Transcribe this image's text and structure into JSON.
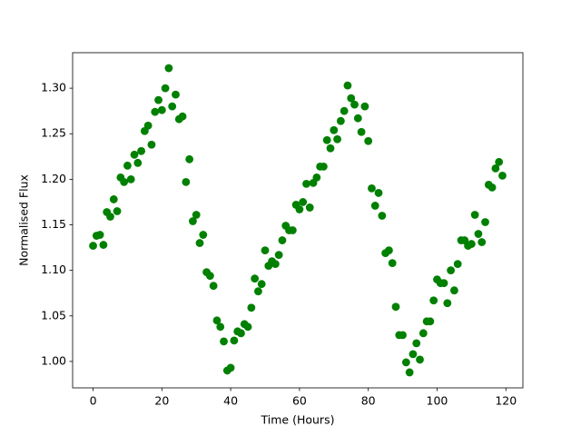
{
  "chart_data": {
    "type": "scatter",
    "xlabel": "Time (Hours)",
    "ylabel": "Normalised Flux",
    "x": [
      0,
      1,
      2,
      3,
      4,
      5,
      6,
      7,
      8,
      9,
      10,
      11,
      12,
      13,
      14,
      15,
      16,
      17,
      18,
      19,
      20,
      21,
      22,
      23,
      24,
      25,
      26,
      27,
      28,
      29,
      30,
      31,
      32,
      33,
      34,
      35,
      36,
      37,
      38,
      39,
      40,
      41,
      42,
      43,
      44,
      45,
      46,
      47,
      48,
      49,
      50,
      51,
      52,
      53,
      54,
      55,
      56,
      57,
      58,
      59,
      60,
      61,
      62,
      63,
      64,
      65,
      66,
      67,
      68,
      69,
      70,
      71,
      72,
      73,
      74,
      75,
      76,
      77,
      78,
      79,
      80,
      81,
      82,
      83,
      84,
      85,
      86,
      87,
      88,
      89,
      90,
      91,
      92,
      93,
      94,
      95,
      96,
      97,
      98,
      99,
      100,
      101,
      102,
      103,
      104,
      105,
      106,
      107,
      108,
      109,
      110,
      111,
      112,
      113,
      114,
      115,
      116,
      117,
      118,
      119
    ],
    "values": [
      1.127,
      1.138,
      1.139,
      1.128,
      1.164,
      1.159,
      1.178,
      1.165,
      1.202,
      1.197,
      1.215,
      1.2,
      1.227,
      1.218,
      1.231,
      1.253,
      1.259,
      1.238,
      1.274,
      1.287,
      1.276,
      1.3,
      1.322,
      1.28,
      1.293,
      1.266,
      1.269,
      1.197,
      1.222,
      1.154,
      1.161,
      1.13,
      1.139,
      1.098,
      1.094,
      1.083,
      1.045,
      1.038,
      1.022,
      0.99,
      0.993,
      1.023,
      1.033,
      1.031,
      1.041,
      1.038,
      1.059,
      1.091,
      1.077,
      1.085,
      1.122,
      1.105,
      1.11,
      1.107,
      1.117,
      1.133,
      1.149,
      1.144,
      1.144,
      1.172,
      1.167,
      1.175,
      1.195,
      1.169,
      1.196,
      1.202,
      1.214,
      1.214,
      1.243,
      1.234,
      1.254,
      1.244,
      1.264,
      1.275,
      1.303,
      1.289,
      1.282,
      1.267,
      1.252,
      1.28,
      1.242,
      1.19,
      1.171,
      1.185,
      1.16,
      1.119,
      1.122,
      1.108,
      1.06,
      1.029,
      1.029,
      0.999,
      0.988,
      1.008,
      1.02,
      1.002,
      1.031,
      1.044,
      1.044,
      1.067,
      1.09,
      1.086,
      1.086,
      1.064,
      1.1,
      1.078,
      1.107,
      1.133,
      1.133,
      1.127,
      1.129,
      1.161,
      1.14,
      1.131,
      1.153,
      1.194,
      1.191,
      1.212,
      1.219,
      1.204
    ],
    "color": "#008000",
    "xlim": [
      -5.95,
      124.95
    ],
    "xticks": [
      0,
      20,
      40,
      60,
      80,
      100,
      120
    ],
    "ylim": [
      0.971,
      1.339
    ],
    "yticks": [
      {
        "value": 1,
        "label": "1.00"
      },
      {
        "value": 1.05,
        "label": "1.05"
      },
      {
        "value": 1.1,
        "label": "1.10"
      },
      {
        "value": 1.15,
        "label": "1.15"
      },
      {
        "value": 1.2,
        "label": "1.20"
      },
      {
        "value": 1.25,
        "label": "1.25"
      },
      {
        "value": 1.3,
        "label": "1.30"
      }
    ]
  }
}
